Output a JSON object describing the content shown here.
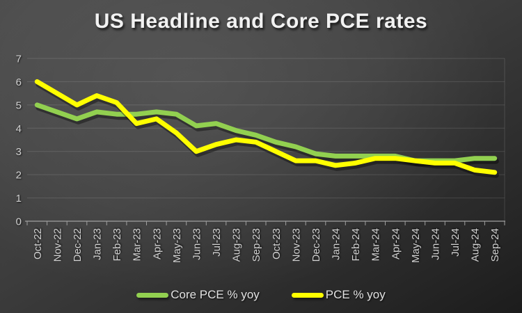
{
  "title": "US Headline and Core PCE rates",
  "colors": {
    "background_light": "#474747",
    "background_dark": "#1c1c1c",
    "grid": "rgba(255,255,255,0.13)",
    "axis": "#a0a0a0",
    "axis_text": "#d2d2d2",
    "title_text": "#f2f2f2",
    "core_pce_green": "#92d050",
    "pce_yellow": "#ffff00",
    "line_shadow": "rgba(0,0,0,0.38)"
  },
  "chart_data": {
    "type": "line",
    "title": "US Headline and Core PCE rates",
    "categories": [
      "Oct-22",
      "Nov-22",
      "Dec-22",
      "Jan-23",
      "Feb-23",
      "Mar-23",
      "Apr-23",
      "May-23",
      "Jun-23",
      "Jul-23",
      "Aug-23",
      "Sep-23",
      "Oct-23",
      "Nov-23",
      "Dec-23",
      "Jan-24",
      "Feb-24",
      "Mar-24",
      "Apr-24",
      "May-24",
      "Jun-24",
      "Jul-24",
      "Aug-24",
      "Sep-24"
    ],
    "series": [
      {
        "name": "Core PCE % yoy",
        "color": "#92d050",
        "values": [
          5.0,
          4.7,
          4.4,
          4.7,
          4.6,
          4.6,
          4.7,
          4.6,
          4.1,
          4.2,
          3.9,
          3.7,
          3.4,
          3.2,
          2.9,
          2.8,
          2.8,
          2.8,
          2.8,
          2.6,
          2.6,
          2.6,
          2.7,
          2.7
        ]
      },
      {
        "name": "PCE % yoy",
        "color": "#ffff00",
        "values": [
          6.0,
          5.5,
          5.0,
          5.4,
          5.1,
          4.2,
          4.4,
          3.8,
          3.0,
          3.3,
          3.5,
          3.4,
          3.0,
          2.6,
          2.6,
          2.4,
          2.5,
          2.7,
          2.7,
          2.6,
          2.5,
          2.5,
          2.2,
          2.1
        ]
      }
    ],
    "ylim": [
      0,
      7
    ],
    "yticks": [
      0,
      1,
      2,
      3,
      4,
      5,
      6,
      7
    ],
    "grid": true,
    "legend_position": "bottom",
    "x_label_rotation": -90
  }
}
